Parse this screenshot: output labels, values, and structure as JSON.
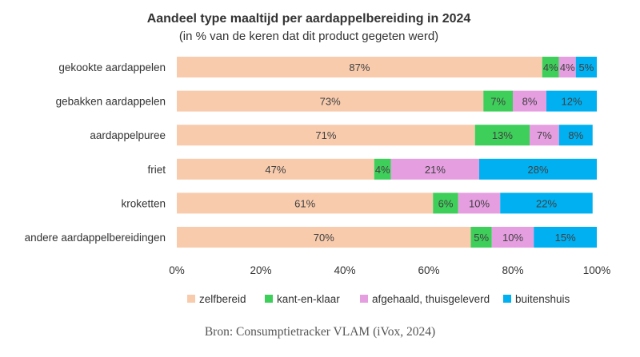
{
  "chart_data": {
    "type": "bar",
    "orientation": "horizontal",
    "stacked": true,
    "title": "Aandeel type maaltijd per aardappelbereiding in 2024",
    "subtitle": "(in % van de keren dat dit product gegeten werd)",
    "categories": [
      "gekookte aardappelen",
      "gebakken aardappelen",
      "aardappelpuree",
      "friet",
      "kroketten",
      "andere aardappelbereidingen"
    ],
    "series": [
      {
        "name": "zelfbereid",
        "color": "#f8cbad",
        "values": [
          87,
          73,
          71,
          47,
          61,
          70
        ]
      },
      {
        "name": "kant-en-klaar",
        "color": "#3ecf5a",
        "values": [
          4,
          7,
          13,
          4,
          6,
          5
        ]
      },
      {
        "name": "afgehaald, thuisgeleverd",
        "color": "#e59ee0",
        "values": [
          4,
          8,
          7,
          21,
          10,
          10
        ]
      },
      {
        "name": "buitenshuis",
        "color": "#00b0f0",
        "values": [
          5,
          12,
          8,
          28,
          22,
          15
        ]
      }
    ],
    "xlim": [
      0,
      100
    ],
    "xticks": [
      "0%",
      "20%",
      "40%",
      "60%",
      "80%",
      "100%"
    ],
    "value_suffix": "%",
    "legend_position": "bottom",
    "grid": false,
    "source": "Bron: Consumptietracker VLAM (iVox, 2024)"
  }
}
